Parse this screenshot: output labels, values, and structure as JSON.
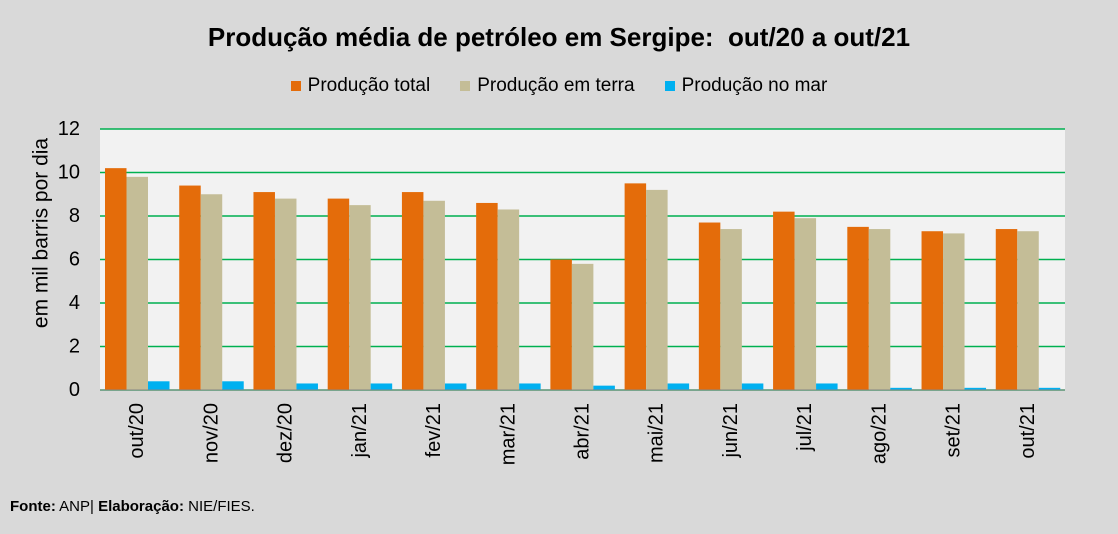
{
  "chart_data": {
    "type": "bar",
    "title": "Produção média de petróleo em Sergipe:  out/20 a out/21",
    "ylabel": "em mil barris por dia",
    "categories": [
      "out/20",
      "nov/20",
      "dez/20",
      "jan/21",
      "fev/21",
      "mar/21",
      "abr/21",
      "mai/21",
      "jun/21",
      "jul/21",
      "ago/21",
      "set/21",
      "out/21"
    ],
    "series": [
      {
        "name": "Produção total",
        "color": "#e46c0a",
        "values": [
          10.2,
          9.4,
          9.1,
          8.8,
          9.1,
          8.6,
          6.0,
          9.5,
          7.7,
          8.2,
          7.5,
          7.3,
          7.4
        ]
      },
      {
        "name": "Produção em terra",
        "color": "#c4bd97",
        "values": [
          9.8,
          9.0,
          8.8,
          8.5,
          8.7,
          8.3,
          5.8,
          9.2,
          7.4,
          7.9,
          7.4,
          7.2,
          7.3
        ]
      },
      {
        "name": "Produção no mar",
        "color": "#00b0f0",
        "values": [
          0.4,
          0.4,
          0.3,
          0.3,
          0.3,
          0.3,
          0.2,
          0.3,
          0.3,
          0.3,
          0.1,
          0.1,
          0.1
        ]
      }
    ],
    "ylim": [
      0,
      12
    ],
    "yticks": [
      0,
      2,
      4,
      6,
      8,
      10,
      12
    ],
    "grid": true,
    "legend_position": "top"
  },
  "colors": {
    "page_background": "#d9d9d9",
    "plot_background": "#f2f2f2",
    "gridline": "#00b050"
  },
  "footer": {
    "source_label": "Fonte:",
    "source_value": "ANP|",
    "credit_label": "Elaboração:",
    "credit_value": "NIE/FIES."
  }
}
